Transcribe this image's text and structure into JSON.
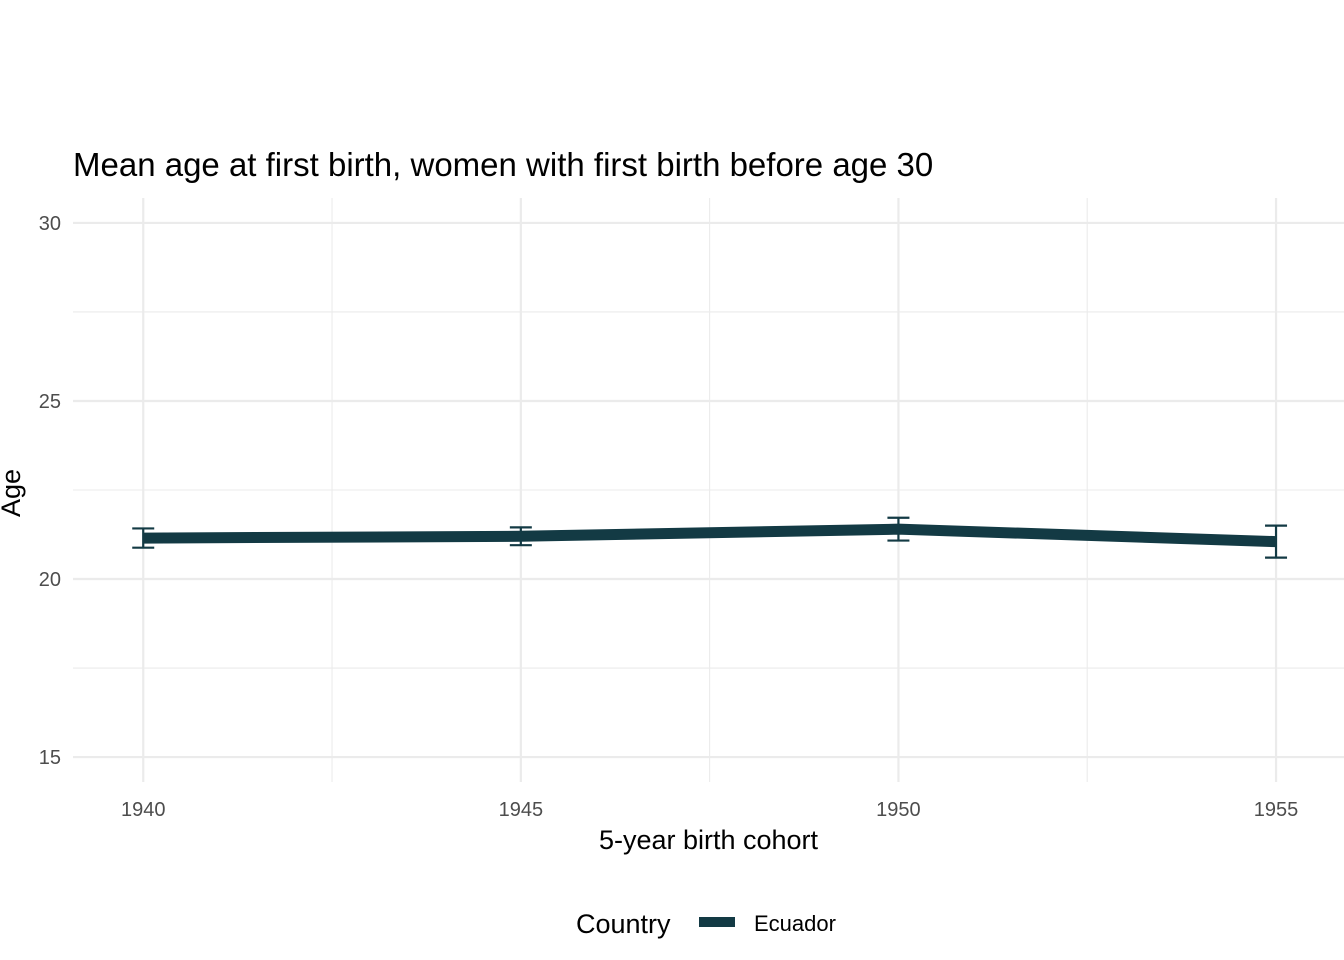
{
  "chart_data": {
    "type": "line",
    "title": "Mean age at first birth, women with first birth before age 30",
    "xlabel": "5-year birth cohort",
    "ylabel": "Age",
    "x": [
      1940,
      1945,
      1950,
      1955
    ],
    "x_ticks": [
      "1940",
      "1945",
      "1950",
      "1955"
    ],
    "y_ticks": [
      "15",
      "20",
      "25",
      "30"
    ],
    "xlim": [
      1939.07,
      1955.9
    ],
    "ylim": [
      14.3,
      30.7
    ],
    "grid": true,
    "legend": {
      "title": "Country",
      "position": "bottom"
    },
    "series": [
      {
        "name": "Ecuador",
        "color": "#133a44",
        "values": [
          21.15,
          21.2,
          21.4,
          21.05
        ],
        "error_low": [
          20.88,
          20.95,
          21.08,
          20.6
        ],
        "error_high": [
          21.42,
          21.45,
          21.72,
          21.5
        ]
      }
    ]
  }
}
